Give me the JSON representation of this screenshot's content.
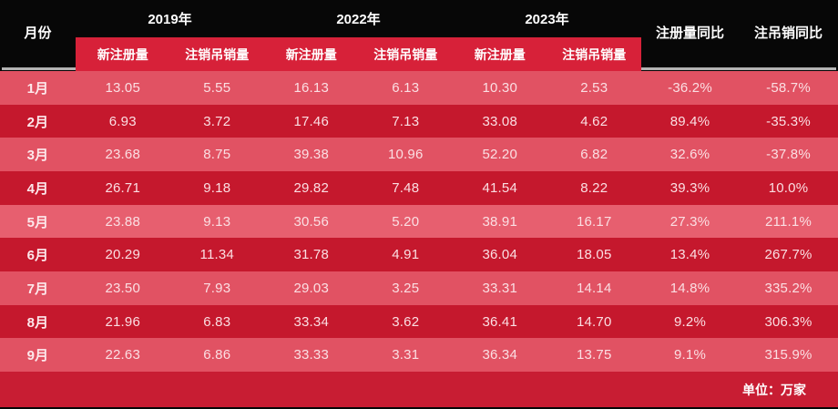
{
  "colors": {
    "background_black": "#070707",
    "subheader_red": "#d72139",
    "row_light": "#e15263",
    "row_light_highlight": "#e75f6f",
    "row_dark": "#c5182d",
    "footer_red": "#c81d33",
    "underline_gray": "#b3b3b3",
    "header_text": "#ffffff",
    "cell_text": "#fbdfe3"
  },
  "table": {
    "month_header": "月份",
    "year_groups": [
      {
        "year": "2019年",
        "sub": [
          "新注册量",
          "注销吊销量"
        ]
      },
      {
        "year": "2022年",
        "sub": [
          "新注册量",
          "注销吊销量"
        ]
      },
      {
        "year": "2023年",
        "sub": [
          "新注册量",
          "注销吊销量"
        ]
      }
    ],
    "yoy_headers": [
      "注册量同比",
      "注吊销同比"
    ],
    "highlighted_row_index": 4,
    "unit_note": "单位：万家",
    "rows": [
      {
        "month": "1月",
        "values": [
          "13.05",
          "5.55",
          "16.13",
          "6.13",
          "10.30",
          "2.53"
        ],
        "yoy": [
          "-36.2%",
          "-58.7%"
        ]
      },
      {
        "month": "2月",
        "values": [
          "6.93",
          "3.72",
          "17.46",
          "7.13",
          "33.08",
          "4.62"
        ],
        "yoy": [
          "89.4%",
          "-35.3%"
        ]
      },
      {
        "month": "3月",
        "values": [
          "23.68",
          "8.75",
          "39.38",
          "10.96",
          "52.20",
          "6.82"
        ],
        "yoy": [
          "32.6%",
          "-37.8%"
        ]
      },
      {
        "month": "4月",
        "values": [
          "26.71",
          "9.18",
          "29.82",
          "7.48",
          "41.54",
          "8.22"
        ],
        "yoy": [
          "39.3%",
          "10.0%"
        ]
      },
      {
        "month": "5月",
        "values": [
          "23.88",
          "9.13",
          "30.56",
          "5.20",
          "38.91",
          "16.17"
        ],
        "yoy": [
          "27.3%",
          "211.1%"
        ]
      },
      {
        "month": "6月",
        "values": [
          "20.29",
          "11.34",
          "31.78",
          "4.91",
          "36.04",
          "18.05"
        ],
        "yoy": [
          "13.4%",
          "267.7%"
        ]
      },
      {
        "month": "7月",
        "values": [
          "23.50",
          "7.93",
          "29.03",
          "3.25",
          "33.31",
          "14.14"
        ],
        "yoy": [
          "14.8%",
          "335.2%"
        ]
      },
      {
        "month": "8月",
        "values": [
          "21.96",
          "6.83",
          "33.34",
          "3.62",
          "36.41",
          "14.70"
        ],
        "yoy": [
          "9.2%",
          "306.3%"
        ]
      },
      {
        "month": "9月",
        "values": [
          "22.63",
          "6.86",
          "33.33",
          "3.31",
          "36.34",
          "13.75"
        ],
        "yoy": [
          "9.1%",
          "315.9%"
        ]
      }
    ]
  },
  "chart_data": {
    "type": "table",
    "title": "",
    "unit": "单位：万家",
    "categories": [
      "1月",
      "2月",
      "3月",
      "4月",
      "5月",
      "6月",
      "7月",
      "8月",
      "9月"
    ],
    "series": [
      {
        "name": "2019年 新注册量",
        "values": [
          13.05,
          6.93,
          23.68,
          26.71,
          23.88,
          20.29,
          23.5,
          21.96,
          22.63
        ]
      },
      {
        "name": "2019年 注销吊销量",
        "values": [
          5.55,
          3.72,
          8.75,
          9.18,
          9.13,
          11.34,
          7.93,
          6.83,
          6.86
        ]
      },
      {
        "name": "2022年 新注册量",
        "values": [
          16.13,
          17.46,
          39.38,
          29.82,
          30.56,
          31.78,
          29.03,
          33.34,
          33.33
        ]
      },
      {
        "name": "2022年 注销吊销量",
        "values": [
          6.13,
          7.13,
          10.96,
          7.48,
          5.2,
          4.91,
          3.25,
          3.62,
          3.31
        ]
      },
      {
        "name": "2023年 新注册量",
        "values": [
          10.3,
          33.08,
          52.2,
          41.54,
          38.91,
          36.04,
          33.31,
          36.41,
          36.34
        ]
      },
      {
        "name": "2023年 注销吊销量",
        "values": [
          2.53,
          4.62,
          6.82,
          8.22,
          16.17,
          18.05,
          14.14,
          14.7,
          13.75
        ]
      },
      {
        "name": "注册量同比",
        "values": [
          "-36.2%",
          "89.4%",
          "32.6%",
          "39.3%",
          "27.3%",
          "13.4%",
          "14.8%",
          "9.2%",
          "9.1%"
        ]
      },
      {
        "name": "注吊销同比",
        "values": [
          "-58.7%",
          "-35.3%",
          "-37.8%",
          "10.0%",
          "211.1%",
          "267.7%",
          "335.2%",
          "306.3%",
          "315.9%"
        ]
      }
    ]
  }
}
